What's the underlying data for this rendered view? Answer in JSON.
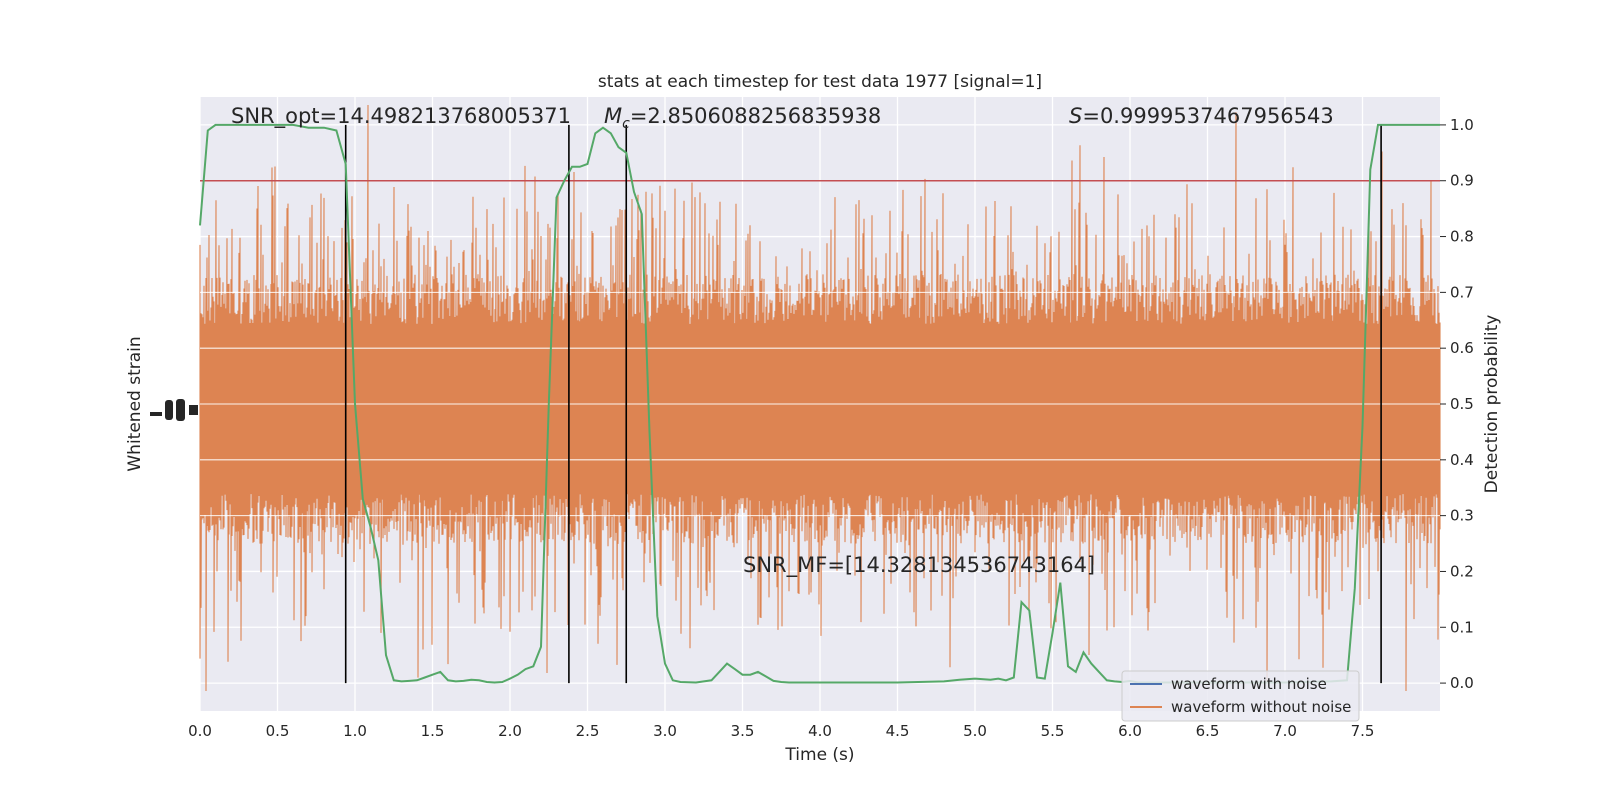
{
  "chart_data": {
    "type": "line",
    "title": "stats at each timestep for test data 1977 [signal=1]",
    "xlabel": "Time (s)",
    "ylabel_left": "Whitened strain",
    "ylabel_right": "Detection probability",
    "xlim": [
      0.0,
      8.0
    ],
    "ylim_right": [
      -0.05,
      1.05
    ],
    "x_ticks": [
      "0.0",
      "0.5",
      "1.0",
      "1.5",
      "2.0",
      "2.5",
      "3.0",
      "3.5",
      "4.0",
      "4.5",
      "5.0",
      "5.5",
      "6.0",
      "6.5",
      "7.0",
      "7.5"
    ],
    "y_ticks_right": [
      "0.0",
      "0.1",
      "0.2",
      "0.3",
      "0.4",
      "0.5",
      "0.6",
      "0.7",
      "0.8",
      "0.9",
      "1.0"
    ],
    "grid": true,
    "legend_placement": "lower-right",
    "threshold": 0.9,
    "annotations": {
      "snr_opt": "SNR_opt=14.498213768005371",
      "mc_symbol": "M",
      "mc_subscript": "c",
      "mc_value": "=2.8506088256835938",
      "s_symbol": "S",
      "s_value": "=0.9999537467956543",
      "snr_mf": "SNR_MF=[14.328134536743164]"
    },
    "vertical_lines_x": [
      0.94,
      2.38,
      2.75,
      7.62
    ],
    "series": [
      {
        "name": "waveform with noise",
        "color": "#4c72b0"
      },
      {
        "name": "waveform without noise",
        "color": "#dd8452"
      },
      {
        "color": "#55a868",
        "x": [
          0.0,
          0.05,
          0.1,
          0.2,
          0.3,
          0.4,
          0.5,
          0.6,
          0.7,
          0.8,
          0.88,
          0.94,
          1.0,
          1.05,
          1.1,
          1.15,
          1.2,
          1.25,
          1.3,
          1.35,
          1.4,
          1.45,
          1.5,
          1.55,
          1.6,
          1.65,
          1.7,
          1.75,
          1.8,
          1.85,
          1.9,
          1.95,
          2.0,
          2.05,
          2.1,
          2.15,
          2.2,
          2.25,
          2.3,
          2.35,
          2.4,
          2.45,
          2.5,
          2.55,
          2.6,
          2.65,
          2.7,
          2.75,
          2.8,
          2.85,
          2.9,
          2.95,
          3.0,
          3.05,
          3.1,
          3.2,
          3.3,
          3.35,
          3.4,
          3.45,
          3.5,
          3.55,
          3.6,
          3.65,
          3.7,
          3.75,
          3.8,
          3.9,
          4.0,
          4.2,
          4.5,
          4.8,
          4.9,
          5.0,
          5.1,
          5.15,
          5.2,
          5.25,
          5.3,
          5.35,
          5.4,
          5.45,
          5.5,
          5.55,
          5.6,
          5.65,
          5.7,
          5.75,
          5.8,
          5.85,
          5.9,
          5.95,
          6.0,
          6.05,
          6.1,
          6.2,
          6.3,
          6.5,
          7.0,
          7.3,
          7.4,
          7.45,
          7.5,
          7.55,
          7.6,
          7.65,
          7.7,
          7.75,
          7.8,
          7.9,
          8.0
        ],
        "y": [
          0.82,
          0.99,
          1.0,
          1.0,
          1.0,
          1.0,
          1.0,
          1.0,
          0.995,
          0.995,
          0.99,
          0.93,
          0.5,
          0.33,
          0.28,
          0.22,
          0.05,
          0.005,
          0.003,
          0.004,
          0.005,
          0.01,
          0.015,
          0.02,
          0.005,
          0.003,
          0.004,
          0.006,
          0.005,
          0.002,
          0.001,
          0.002,
          0.008,
          0.015,
          0.025,
          0.03,
          0.065,
          0.5,
          0.87,
          0.9,
          0.925,
          0.925,
          0.93,
          0.985,
          0.995,
          0.985,
          0.96,
          0.95,
          0.88,
          0.84,
          0.45,
          0.12,
          0.035,
          0.005,
          0.002,
          0.001,
          0.005,
          0.02,
          0.035,
          0.025,
          0.015,
          0.015,
          0.02,
          0.012,
          0.004,
          0.002,
          0.001,
          0.001,
          0.001,
          0.001,
          0.001,
          0.003,
          0.006,
          0.008,
          0.006,
          0.008,
          0.005,
          0.01,
          0.145,
          0.13,
          0.01,
          0.008,
          0.09,
          0.18,
          0.03,
          0.02,
          0.055,
          0.035,
          0.02,
          0.005,
          0.003,
          0.002,
          0.004,
          0.001,
          0.001,
          0.001,
          0.001,
          0.001,
          0.001,
          0.003,
          0.005,
          0.17,
          0.46,
          0.92,
          1.0,
          1.0,
          1.0,
          1.0,
          1.0,
          1.0,
          1.0
        ]
      },
      {
        "color": "#c44e52",
        "x": [
          0.0,
          8.0
        ],
        "y": [
          0.9,
          0.9
        ]
      }
    ]
  }
}
